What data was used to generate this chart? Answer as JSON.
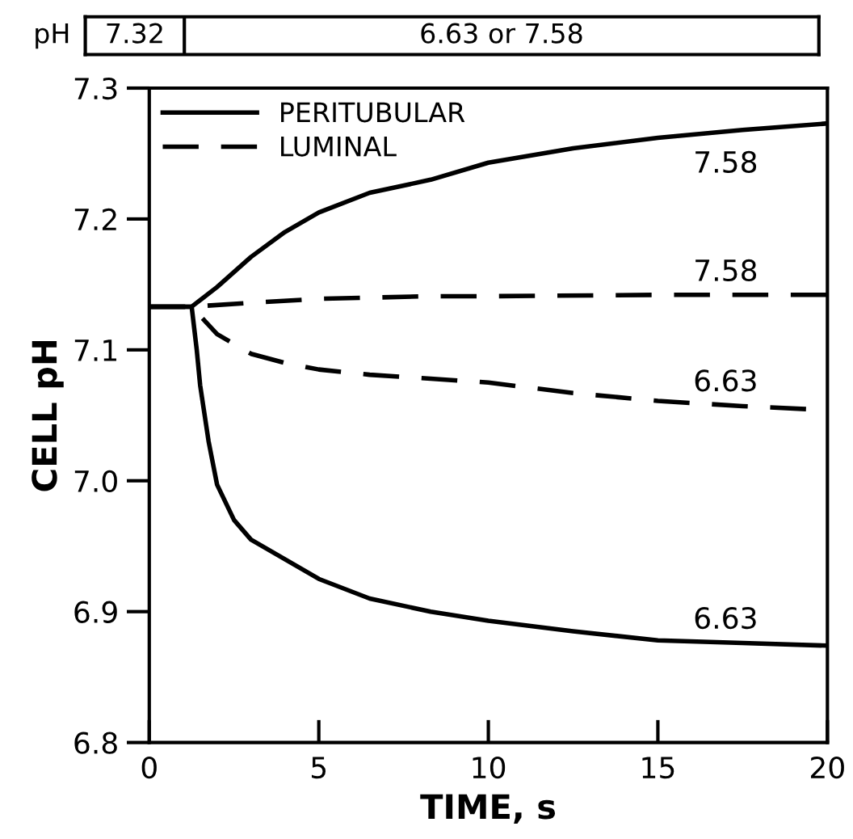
{
  "chart_data": {
    "type": "line",
    "xlabel": "TIME, s",
    "ylabel": "CELL pH",
    "xlim": [
      0,
      20
    ],
    "ylim": [
      6.8,
      7.3
    ],
    "xticks": [
      0,
      5,
      10,
      15,
      20
    ],
    "yticks": [
      6.8,
      6.9,
      {
        "value": 7.0,
        "label": "7.0"
      },
      7.1,
      7.2,
      7.3
    ],
    "legend": "top left",
    "grid": false,
    "series": [
      {
        "name": "PERITUBULAR",
        "color": "#000000",
        "line_style": "solid",
        "x": [
          0,
          1.25,
          2,
          3,
          4,
          5,
          6.5,
          8.3,
          10,
          12.5,
          15,
          17.5,
          20
        ],
        "values": [
          7.133,
          7.133,
          7.148,
          7.171,
          7.19,
          7.205,
          7.22,
          7.23,
          7.243,
          7.254,
          7.262,
          7.268,
          7.273
        ]
      },
      {
        "name": "LUMINAL",
        "color": "#000000",
        "line_style": "dashed",
        "x": [
          0,
          1.25,
          3,
          5,
          8.3,
          10,
          15,
          20
        ],
        "values": [
          7.133,
          7.133,
          7.136,
          7.139,
          7.141,
          7.141,
          7.142,
          7.142
        ]
      },
      {
        "color": "#000000",
        "line_style": "dashed",
        "x": [
          0,
          1.25,
          2,
          3,
          4,
          5,
          6.5,
          8.3,
          10,
          12.5,
          15,
          17.5,
          20
        ],
        "values": [
          7.133,
          7.133,
          7.112,
          7.097,
          7.09,
          7.085,
          7.081,
          7.078,
          7.075,
          7.067,
          7.061,
          7.057,
          7.054
        ]
      },
      {
        "color": "#000000",
        "line_style": "solid",
        "x": [
          0,
          1.25,
          1.4,
          1.5,
          1.75,
          2,
          2.5,
          3,
          4,
          5,
          6.5,
          8.3,
          10,
          12.5,
          15,
          17.5,
          20
        ],
        "values": [
          7.133,
          7.133,
          7.1,
          7.073,
          7.03,
          6.997,
          6.97,
          6.955,
          6.94,
          6.925,
          6.91,
          6.9,
          6.893,
          6.885,
          6.878,
          6.876,
          6.874
        ]
      }
    ],
    "annotations": [
      "7.58",
      "7.58",
      "6.63",
      "6.63",
      "pH",
      "7.32",
      "6.63 or 7.58"
    ]
  }
}
